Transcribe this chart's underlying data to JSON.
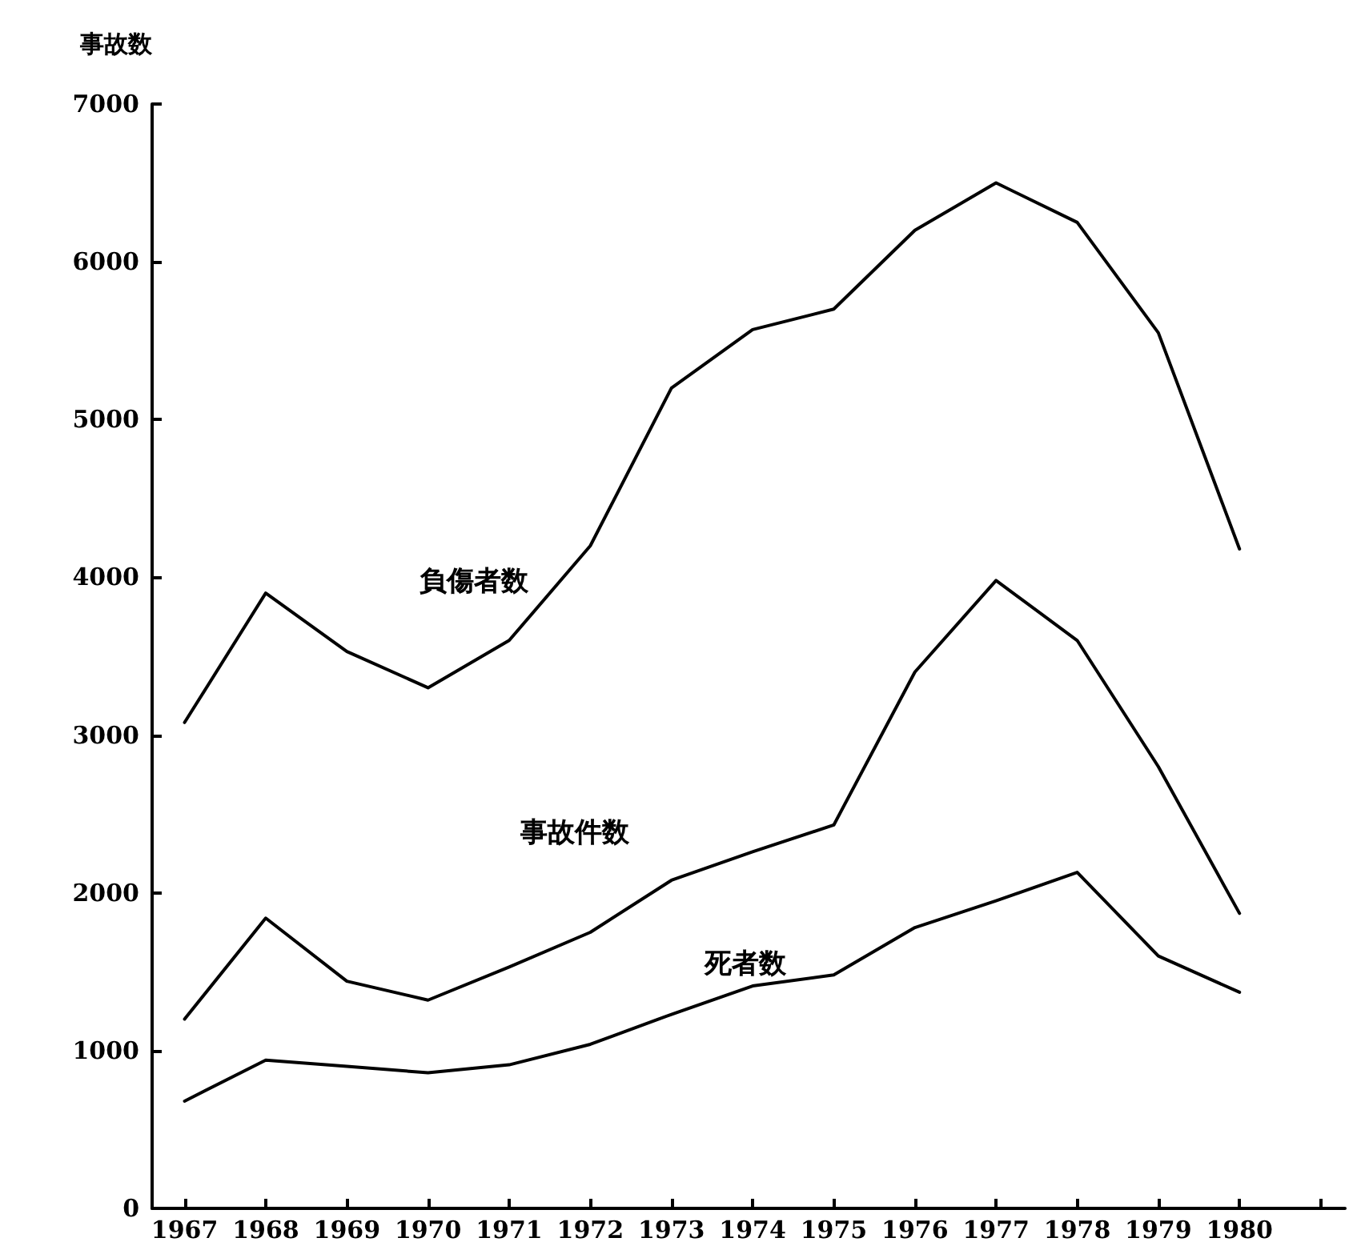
{
  "chart_data": {
    "type": "line",
    "ylabel": "事故数",
    "x": [
      1967,
      1968,
      1969,
      1970,
      1971,
      1972,
      1973,
      1974,
      1975,
      1976,
      1977,
      1978,
      1979,
      1980
    ],
    "xlim": [
      1966.6,
      1981.3
    ],
    "xticks": [
      1967,
      1968,
      1969,
      1970,
      1971,
      1972,
      1973,
      1974,
      1975,
      1976,
      1977,
      1978,
      1979,
      1980,
      {
        "value": 1981,
        "label": null
      }
    ],
    "ylim": [
      0,
      7000
    ],
    "yticks": [
      0,
      1000,
      2000,
      3000,
      4000,
      5000,
      6000,
      7000
    ],
    "grid": false,
    "legend": false,
    "marker": "none",
    "line_style": "solid",
    "series": [
      {
        "name": "負傷者数",
        "color": "#000000",
        "values": [
          3080,
          3900,
          3530,
          3300,
          3600,
          4200,
          5200,
          5570,
          5700,
          6200,
          6500,
          6250,
          5550,
          4180
        ]
      },
      {
        "name": "事故件数",
        "color": "#000000",
        "values": [
          1200,
          1840,
          1440,
          1320,
          1530,
          1750,
          2080,
          2260,
          2430,
          3400,
          3980,
          3600,
          2800,
          1870
        ]
      },
      {
        "name": "死者数",
        "color": "#000000",
        "values": [
          680,
          940,
          900,
          860,
          910,
          1040,
          1230,
          1410,
          1480,
          1780,
          1950,
          2130,
          1600,
          1370
        ]
      }
    ]
  }
}
